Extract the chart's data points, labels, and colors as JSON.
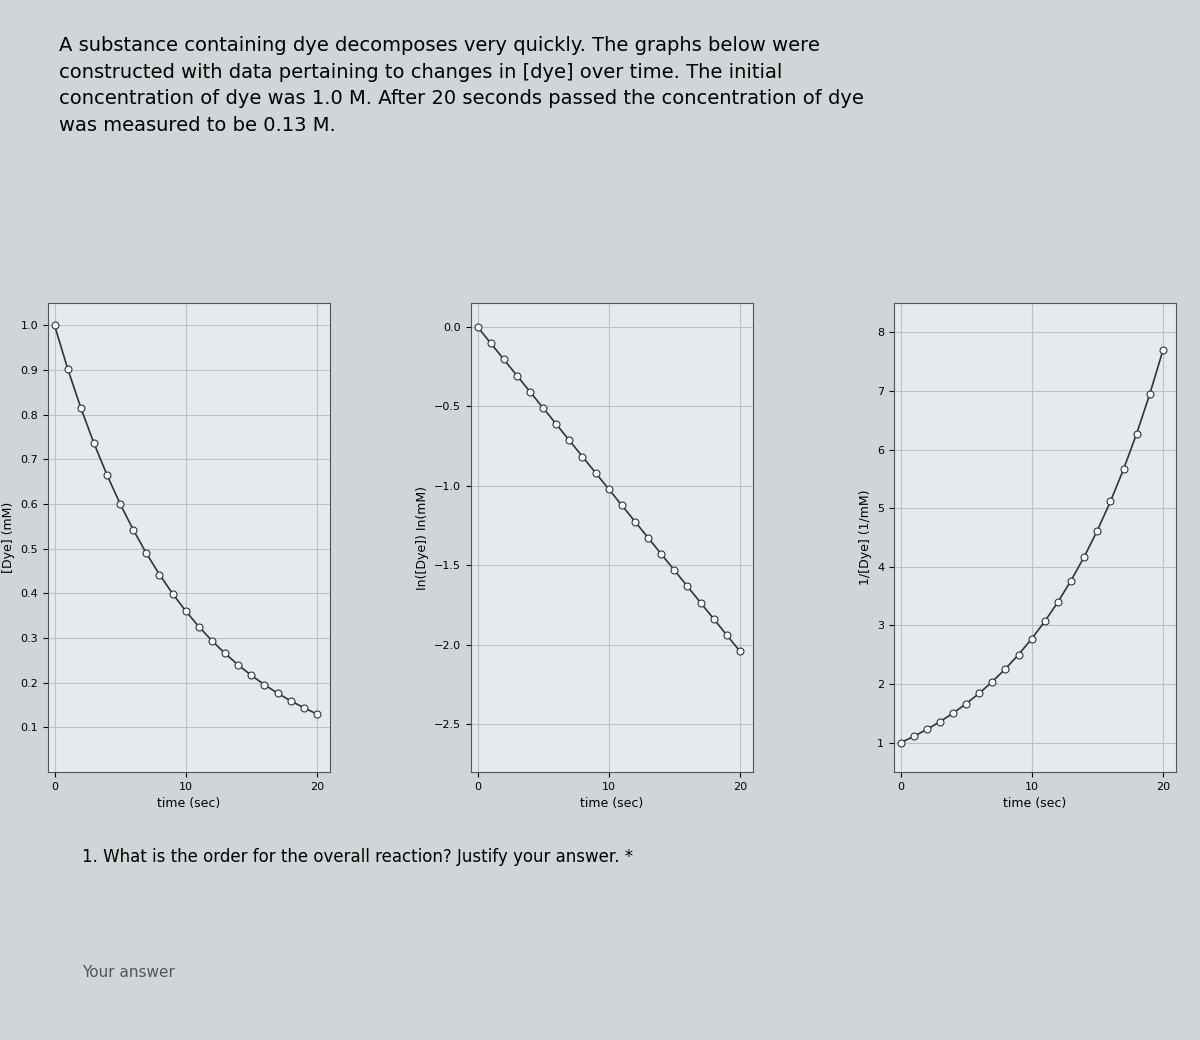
{
  "title_text": "A substance containing dye decomposes very quickly. The graphs below were\nconstructed with data pertaining to changes in [dye] over time. The initial\nconcentration of dye was 1.0 M. After 20 seconds passed the concentration of dye\nwas measured to be 0.13 M.",
  "question_text": "1. What is the order for the overall reaction? Justify your answer. *",
  "answer_label": "Your answer",
  "C0": 1.0,
  "Ct": 0.13,
  "t_final": 20,
  "n_points": 21,
  "plot1_ylabel": "[Dye] (mM)",
  "plot1_xlabel": "time (sec)",
  "plot1_ylim": [
    0.0,
    1.05
  ],
  "plot1_yticks": [
    0.1,
    0.2,
    0.3,
    0.4,
    0.5,
    0.6,
    0.7,
    0.8,
    0.9,
    1.0
  ],
  "plot2_ylabel": "In([Dye]) In(mM)",
  "plot2_xlabel": "time (sec)",
  "plot2_ylim": [
    -2.8,
    0.15
  ],
  "plot2_yticks": [
    0.0,
    -0.5,
    -1.0,
    -1.5,
    -2.0,
    -2.5
  ],
  "plot3_ylabel": "1/[Dye] (1/mM)",
  "plot3_xlabel": "time (sec)",
  "plot3_ylim": [
    0.5,
    8.5
  ],
  "plot3_yticks": [
    1,
    2,
    3,
    4,
    5,
    6,
    7,
    8
  ],
  "line_color": "#333333",
  "marker_facecolor": "white",
  "marker_edgecolor": "#333333",
  "marker_size": 5,
  "bg_color": "#d0d5d8",
  "plot_bg_color": "#e4eaee",
  "grid_color": "#b8c4ca",
  "title_fontsize": 14,
  "axis_label_fontsize": 9,
  "tick_fontsize": 8
}
